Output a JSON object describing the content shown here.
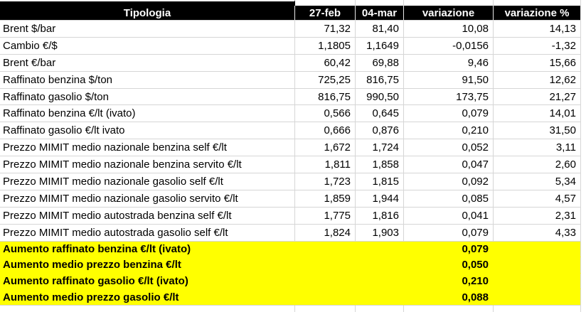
{
  "colors": {
    "header_bg": "#000000",
    "header_text": "#ffffff",
    "negative_text": "#ff0000",
    "highlight_bg": "#ffff00",
    "gridline": "#d6d6d6"
  },
  "table": {
    "columns": [
      "Tipologia",
      "27-feb",
      "04-mar",
      "variazione",
      "variazione %"
    ],
    "rows": [
      {
        "label": "Brent $/bar",
        "feb": "71,32",
        "mar": "81,40",
        "var": "10,08",
        "varpct": "14,13",
        "negative": false
      },
      {
        "label": "Cambio €/$",
        "feb": "1,1805",
        "mar": "1,1649",
        "var": "-0,0156",
        "varpct": "-1,32",
        "negative": true
      },
      {
        "label": "Brent €/bar",
        "feb": "60,42",
        "mar": "69,88",
        "var": "9,46",
        "varpct": "15,66",
        "negative": false
      },
      {
        "label": "Raffinato benzina $/ton",
        "feb": "725,25",
        "mar": "816,75",
        "var": "91,50",
        "varpct": "12,62",
        "negative": false
      },
      {
        "label": "Raffinato gasolio $/ton",
        "feb": "816,75",
        "mar": "990,50",
        "var": "173,75",
        "varpct": "21,27",
        "negative": false
      },
      {
        "label": "Raffinato benzina €/lt (ivato)",
        "feb": "0,566",
        "mar": "0,645",
        "var": "0,079",
        "varpct": "14,01",
        "negative": false
      },
      {
        "label": "Raffinato gasolio €/lt ivato",
        "feb": "0,666",
        "mar": "0,876",
        "var": "0,210",
        "varpct": "31,50",
        "negative": false
      },
      {
        "label": "Prezzo MIMIT medio nazionale benzina self €/lt",
        "feb": "1,672",
        "mar": "1,724",
        "var": "0,052",
        "varpct": "3,11",
        "negative": false
      },
      {
        "label": "Prezzo MIMIT medio nazionale benzina servito €/lt",
        "feb": "1,811",
        "mar": "1,858",
        "var": "0,047",
        "varpct": "2,60",
        "negative": false
      },
      {
        "label": "Prezzo MIMIT medio nazionale gasolio self €/lt",
        "feb": "1,723",
        "mar": "1,815",
        "var": "0,092",
        "varpct": "5,34",
        "negative": false
      },
      {
        "label": "Prezzo MIMIT medio nazionale gasolio servito €/lt",
        "feb": "1,859",
        "mar": "1,944",
        "var": "0,085",
        "varpct": "4,57",
        "negative": false
      },
      {
        "label": "Prezzo MIMIT medio autostrada benzina self €/lt",
        "feb": "1,775",
        "mar": "1,816",
        "var": "0,041",
        "varpct": "2,31",
        "negative": false
      },
      {
        "label": "Prezzo MIMIT medio autostrada gasolio self €/lt",
        "feb": "1,824",
        "mar": "1,903",
        "var": "0,079",
        "varpct": "4,33",
        "negative": false
      }
    ],
    "summary_rows": [
      {
        "label": "Aumento raffinato benzina €/lt (ivato)",
        "var": "0,079"
      },
      {
        "label": "Aumento medio prezzo benzina €/lt",
        "var": "0,050"
      },
      {
        "label": "Aumento raffinato gasolio €/lt (ivato)",
        "var": "0,210"
      },
      {
        "label": "Aumento medio prezzo gasolio €/lt",
        "var": "0,088"
      }
    ]
  }
}
